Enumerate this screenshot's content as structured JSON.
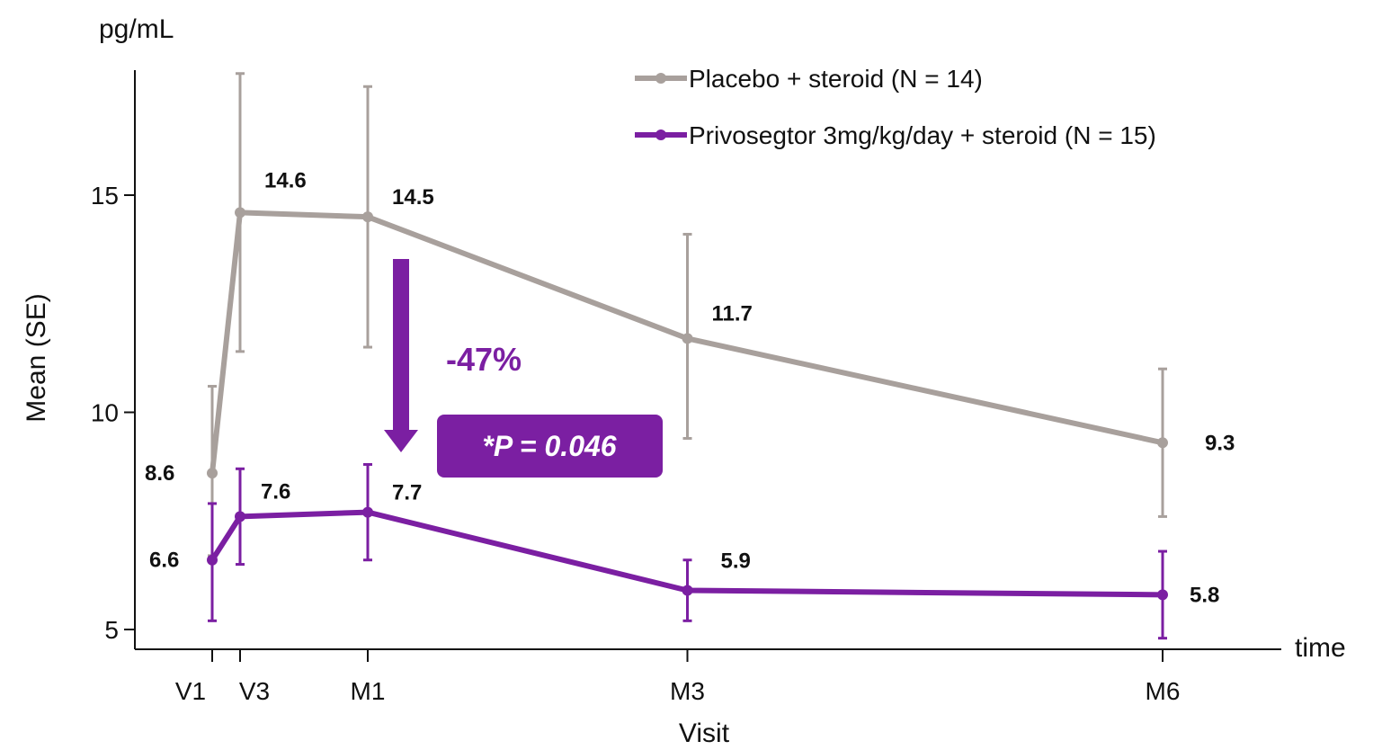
{
  "chart_data": {
    "type": "line",
    "title": "",
    "unit_label": "pg/mL",
    "ylabel": "Mean (SE)",
    "xlabel": "Visit",
    "x_axis_end_label": "time",
    "categories": [
      "V1",
      "V3",
      "M1",
      "M3",
      "M6"
    ],
    "x_time_months": [
      0,
      0.2,
      1,
      3,
      6
    ],
    "ylim": [
      4.5,
      17.8
    ],
    "y_ticks": [
      5,
      10,
      15
    ],
    "grid": false,
    "legend_position": "top-right",
    "series": [
      {
        "name": "Placebo + steroid (N = 14)",
        "color": "#a8a09c",
        "values": [
          8.6,
          14.6,
          14.5,
          11.7,
          9.3
        ],
        "se_lower": [
          6.7,
          11.4,
          11.5,
          9.4,
          7.6
        ],
        "se_upper": [
          10.6,
          17.8,
          17.5,
          14.1,
          11.0
        ],
        "labels": [
          "8.6",
          "14.6",
          "14.5",
          "11.7",
          "9.3"
        ]
      },
      {
        "name": "Privosegtor 3mg/kg/day + steroid (N = 15)",
        "color": "#7b1fa2",
        "values": [
          6.6,
          7.6,
          7.7,
          5.9,
          5.8
        ],
        "se_lower": [
          5.2,
          6.5,
          6.6,
          5.2,
          4.8
        ],
        "se_upper": [
          7.9,
          8.7,
          8.8,
          6.6,
          6.8
        ],
        "labels": [
          "6.6",
          "7.6",
          "7.7",
          "5.9",
          "5.8"
        ]
      }
    ],
    "annotations": {
      "percent_change": "-47%",
      "p_value": "*P = 0.046",
      "arrow_from": 13.5,
      "arrow_to": 8.9,
      "arrow_color": "#7b1fa2"
    }
  }
}
